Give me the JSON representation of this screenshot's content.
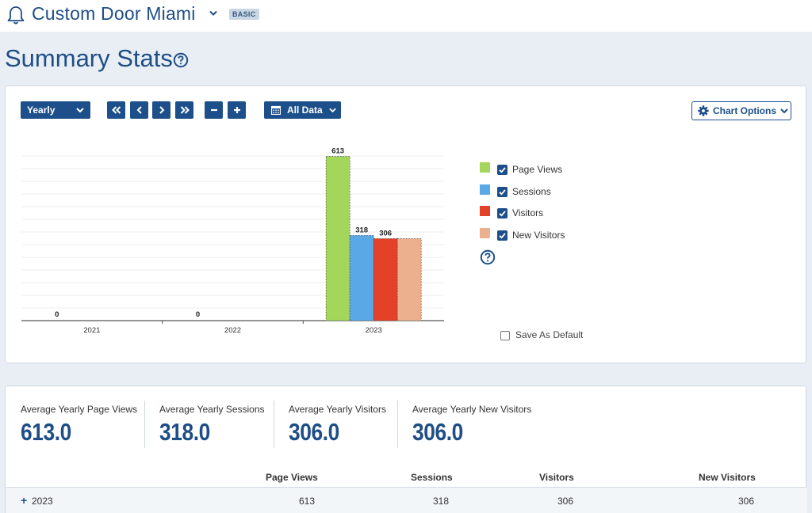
{
  "header": {
    "site_title": "Custom Door Miami",
    "plan_badge": "BASIC"
  },
  "page": {
    "title": "Summary Stats"
  },
  "toolbar": {
    "period": "Yearly",
    "range": "All Data",
    "chart_options": "Chart Options"
  },
  "chart_data": {
    "type": "bar",
    "categories": [
      "2021",
      "2022",
      "2023"
    ],
    "series": [
      {
        "name": "Page Views",
        "values": [
          0,
          0,
          613
        ],
        "color": "#a3d65a"
      },
      {
        "name": "Sessions",
        "values": [
          0,
          0,
          318
        ],
        "color": "#5aa9e6"
      },
      {
        "name": "Visitors",
        "values": [
          0,
          0,
          306
        ],
        "color": "#e34228"
      },
      {
        "name": "New Visitors",
        "values": [
          0,
          0,
          306
        ],
        "color": "#edb08e"
      }
    ],
    "ylim": [
      0,
      650
    ],
    "grid": true,
    "legend_position": "right"
  },
  "legend": {
    "save_default": "Save As Default"
  },
  "summary": {
    "stats": [
      {
        "label": "Average Yearly Page Views",
        "value": "613.0"
      },
      {
        "label": "Average Yearly Sessions",
        "value": "318.0"
      },
      {
        "label": "Average Yearly Visitors",
        "value": "306.0"
      },
      {
        "label": "Average Yearly New Visitors",
        "value": "306.0"
      }
    ]
  },
  "table": {
    "columns": [
      "Page Views",
      "Sessions",
      "Visitors",
      "New Visitors"
    ],
    "rows": [
      {
        "label": "2023",
        "values": [
          "613",
          "318",
          "306",
          "306"
        ]
      }
    ]
  },
  "colors": {
    "primary": "#1d4f8a",
    "title": "#1f4e86"
  }
}
